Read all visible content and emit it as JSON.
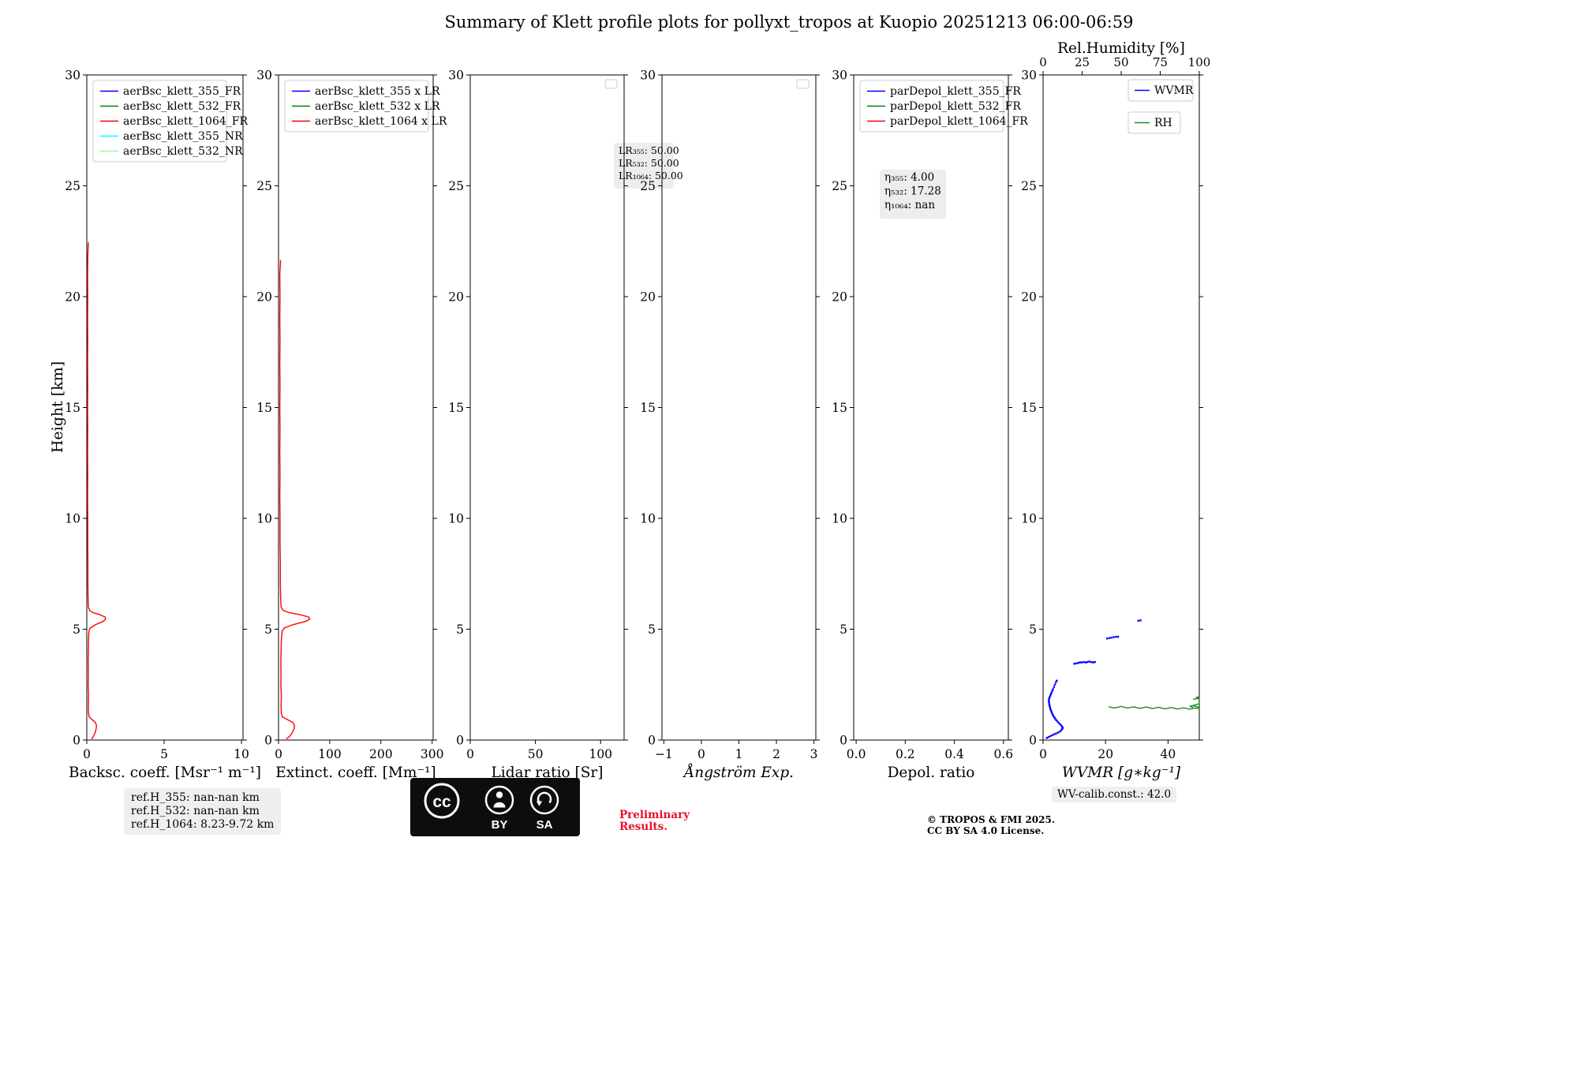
{
  "title": "Summary of Klett profile plots for pollyxt_tropos at Kuopio 20251213 06:00-06:59",
  "ylabel": "Height [km]",
  "footer": {
    "ref_heights": [
      "ref.H_355: nan-nan km",
      "ref.H_532: nan-nan km",
      "ref.H_1064: 8.23-9.72 km"
    ],
    "cc_logo": "cc",
    "cc_by": "BY",
    "cc_sa": "SA",
    "preliminary": [
      "Preliminary",
      "Results."
    ],
    "copyright": [
      "© TROPOS & FMI 2025.",
      "CC BY SA 4.0 License."
    ],
    "wv_calib": "WV-calib.const.: 42.0"
  },
  "chart_data": [
    {
      "id": "backscatter",
      "type": "line",
      "xlabel": "Backsc. coeff. [Msr⁻¹ m⁻¹]",
      "xlabel_italic": false,
      "xlim": [
        0,
        10.1
      ],
      "xticks": [
        0,
        5,
        10
      ],
      "xtick_labels": [
        "0",
        "5",
        "10"
      ],
      "ylim": [
        0,
        30
      ],
      "yticks": [
        0,
        5,
        10,
        15,
        20,
        25,
        30
      ],
      "legend": {
        "position": "top-left",
        "entries": [
          {
            "label": "aerBsc_klett_355_FR",
            "color": "#0000ff"
          },
          {
            "label": "aerBsc_klett_532_FR",
            "color": "#008000"
          },
          {
            "label": "aerBsc_klett_1064_FR",
            "color": "#ff0000"
          },
          {
            "label": "aerBsc_klett_355_NR",
            "color": "#00ffff"
          },
          {
            "label": "aerBsc_klett_532_NR",
            "color": "#98fb98"
          }
        ]
      },
      "series": [
        {
          "name": "aerBsc_klett_1064_FR",
          "color": "#ff0000",
          "mode": "line",
          "axis": "x",
          "points": [
            [
              0.3,
              0.05
            ],
            [
              0.42,
              0.15
            ],
            [
              0.52,
              0.3
            ],
            [
              0.6,
              0.5
            ],
            [
              0.63,
              0.65
            ],
            [
              0.55,
              0.8
            ],
            [
              0.3,
              0.95
            ],
            [
              0.15,
              1.05
            ],
            [
              0.11,
              1.2
            ],
            [
              0.1,
              1.5
            ],
            [
              0.11,
              2.0
            ],
            [
              0.09,
              2.5
            ],
            [
              0.1,
              3.0
            ],
            [
              0.09,
              3.5
            ],
            [
              0.1,
              4.0
            ],
            [
              0.11,
              4.5
            ],
            [
              0.14,
              4.9
            ],
            [
              0.22,
              5.05
            ],
            [
              0.55,
              5.2
            ],
            [
              1.05,
              5.35
            ],
            [
              1.22,
              5.45
            ],
            [
              1.18,
              5.55
            ],
            [
              0.85,
              5.65
            ],
            [
              0.4,
              5.75
            ],
            [
              0.18,
              5.85
            ],
            [
              0.1,
              6.0
            ],
            [
              0.08,
              6.5
            ],
            [
              0.07,
              7.0
            ],
            [
              0.07,
              8.0
            ],
            [
              0.06,
              9.0
            ],
            [
              0.06,
              10.0
            ],
            [
              0.05,
              11.0
            ],
            [
              0.06,
              12.0
            ],
            [
              0.05,
              13.0
            ],
            [
              0.06,
              14.0
            ],
            [
              0.05,
              15.0
            ],
            [
              0.06,
              16.0
            ],
            [
              0.05,
              17.0
            ],
            [
              0.06,
              18.0
            ],
            [
              0.05,
              19.0
            ],
            [
              0.06,
              20.0
            ],
            [
              0.05,
              21.0
            ],
            [
              0.07,
              22.0
            ],
            [
              0.1,
              22.45
            ]
          ]
        }
      ]
    },
    {
      "id": "extinction",
      "type": "line",
      "xlabel": "Extinct. coeff. [Mm⁻¹]",
      "xlabel_italic": false,
      "xlim": [
        0,
        302
      ],
      "xticks": [
        0,
        100,
        200,
        300
      ],
      "xtick_labels": [
        "0",
        "100",
        "200",
        "300"
      ],
      "ylim": [
        0,
        30
      ],
      "yticks": [
        0,
        5,
        10,
        15,
        20,
        25,
        30
      ],
      "legend": {
        "position": "top-left",
        "entries": [
          {
            "label": "aerBsc_klett_355 x LR",
            "color": "#0000ff"
          },
          {
            "label": "aerBsc_klett_532 x LR",
            "color": "#008000"
          },
          {
            "label": "aerBsc_klett_1064 x LR",
            "color": "#ff0000"
          }
        ]
      },
      "annotation": {
        "lines": [
          "LR₃₅₅: 50.00",
          "LR₅₃₂: 50.00",
          "LR₁₀₆₄: 50.00"
        ]
      },
      "series": [
        {
          "name": "aerBsc_klett_1064_xLR",
          "color": "#ff0000",
          "mode": "line",
          "axis": "x",
          "points": [
            [
              15,
              0.05
            ],
            [
              21,
              0.15
            ],
            [
              26,
              0.3
            ],
            [
              30,
              0.5
            ],
            [
              31.5,
              0.65
            ],
            [
              27.5,
              0.8
            ],
            [
              15,
              0.95
            ],
            [
              7.5,
              1.05
            ],
            [
              5.5,
              1.2
            ],
            [
              5,
              1.5
            ],
            [
              5.5,
              2.0
            ],
            [
              4.5,
              2.5
            ],
            [
              5,
              3.0
            ],
            [
              4.5,
              3.5
            ],
            [
              5,
              4.0
            ],
            [
              5.5,
              4.5
            ],
            [
              7,
              4.9
            ],
            [
              11,
              5.05
            ],
            [
              27.5,
              5.2
            ],
            [
              52.5,
              5.35
            ],
            [
              61,
              5.45
            ],
            [
              59,
              5.55
            ],
            [
              42.5,
              5.65
            ],
            [
              20,
              5.75
            ],
            [
              9,
              5.85
            ],
            [
              5,
              6.0
            ],
            [
              4,
              6.5
            ],
            [
              3.5,
              7.0
            ],
            [
              3.5,
              8.0
            ],
            [
              3,
              9.0
            ],
            [
              3,
              10.0
            ],
            [
              2.5,
              11.0
            ],
            [
              3,
              12.0
            ],
            [
              2.5,
              13.0
            ],
            [
              3,
              14.0
            ],
            [
              2.5,
              15.0
            ],
            [
              3,
              16.0
            ],
            [
              2.5,
              17.0
            ],
            [
              3,
              18.0
            ],
            [
              2.5,
              19.0
            ],
            [
              3,
              20.0
            ],
            [
              2.5,
              21.0
            ],
            [
              4,
              21.65
            ]
          ]
        }
      ]
    },
    {
      "id": "lidar-ratio",
      "type": "line",
      "xlabel": "Lidar ratio [Sr]",
      "xlabel_italic": false,
      "xlim": [
        0,
        118
      ],
      "xticks": [
        0,
        50,
        100
      ],
      "xtick_labels": [
        "0",
        "50",
        "100"
      ],
      "ylim": [
        0,
        30
      ],
      "yticks": [
        0,
        5,
        10,
        15,
        20,
        25,
        30
      ],
      "legend": {
        "position": "empty-top-right",
        "entries": []
      },
      "series": []
    },
    {
      "id": "angstrom",
      "type": "line",
      "xlabel": "Ångström Exp.",
      "xlabel_italic": true,
      "xlim": [
        -1.05,
        3.05
      ],
      "xticks": [
        -1,
        0,
        1,
        2,
        3
      ],
      "xtick_labels": [
        "−1",
        "0",
        "1",
        "2",
        "3"
      ],
      "ylim": [
        0,
        30
      ],
      "yticks": [
        0,
        5,
        10,
        15,
        20,
        25,
        30
      ],
      "legend": {
        "position": "empty-top-right",
        "entries": []
      },
      "series": []
    },
    {
      "id": "depol",
      "type": "line",
      "xlabel": "Depol. ratio",
      "xlabel_italic": false,
      "xlim": [
        -0.01,
        0.62
      ],
      "xticks": [
        0,
        0.2,
        0.4,
        0.6
      ],
      "xtick_labels": [
        "0.0",
        "0.2",
        "0.4",
        "0.6"
      ],
      "ylim": [
        0,
        30
      ],
      "yticks": [
        0,
        5,
        10,
        15,
        20,
        25,
        30
      ],
      "legend": {
        "position": "top-left",
        "entries": [
          {
            "label": "parDepol_klett_355_FR",
            "color": "#0000ff"
          },
          {
            "label": "parDepol_klett_532_FR",
            "color": "#008000"
          },
          {
            "label": "parDepol_klett_1064_FR",
            "color": "#ff0000"
          }
        ]
      },
      "annotation": {
        "lines": [
          "η₃₅₅: 4.00",
          "η₅₃₂: 17.28",
          "η₁₀₆₄: nan"
        ]
      },
      "series": []
    },
    {
      "id": "wvmr",
      "type": "scatter",
      "xlabel": "WVMR [g∗kg⁻¹]",
      "xlabel_italic": true,
      "xlim": [
        0,
        50
      ],
      "xticks": [
        0,
        20,
        40
      ],
      "xtick_labels": [
        "0",
        "20",
        "40"
      ],
      "ylim": [
        0,
        30
      ],
      "yticks": [
        0,
        5,
        10,
        15,
        20,
        25,
        30
      ],
      "x2": {
        "label": "Rel.Humidity [%]",
        "xlim": [
          0,
          100
        ],
        "xticks": [
          0,
          25,
          50,
          75,
          100
        ],
        "xtick_labels": [
          "0",
          "25",
          "50",
          "75",
          "100"
        ]
      },
      "legend": {
        "position": "stacked-top-right",
        "entries": [
          {
            "label": "WVMR",
            "color": "#0000ff"
          },
          {
            "label": "RH",
            "color": "#228b22"
          }
        ]
      },
      "series": [
        {
          "name": "WVMR",
          "color": "#0000ff",
          "mode": "scatter",
          "axis": "x",
          "points": [
            [
              1.2,
              0.1
            ],
            [
              1.8,
              0.14
            ],
            [
              2.4,
              0.18
            ],
            [
              3.0,
              0.22
            ],
            [
              3.6,
              0.26
            ],
            [
              4.2,
              0.3
            ],
            [
              4.8,
              0.34
            ],
            [
              5.4,
              0.38
            ],
            [
              5.8,
              0.44
            ],
            [
              6.1,
              0.5
            ],
            [
              6.3,
              0.55
            ],
            [
              6.1,
              0.6
            ],
            [
              5.8,
              0.66
            ],
            [
              5.4,
              0.72
            ],
            [
              5.0,
              0.78
            ],
            [
              4.6,
              0.84
            ],
            [
              4.2,
              0.9
            ],
            [
              3.9,
              0.96
            ],
            [
              3.6,
              1.02
            ],
            [
              3.3,
              1.08
            ],
            [
              3.1,
              1.14
            ],
            [
              2.9,
              1.2
            ],
            [
              2.7,
              1.27
            ],
            [
              2.5,
              1.34
            ],
            [
              2.35,
              1.41
            ],
            [
              2.2,
              1.48
            ],
            [
              2.1,
              1.55
            ],
            [
              2.0,
              1.62
            ],
            [
              1.9,
              1.7
            ],
            [
              1.85,
              1.78
            ],
            [
              1.95,
              1.86
            ],
            [
              2.1,
              1.93
            ],
            [
              2.3,
              2.0
            ],
            [
              2.5,
              2.07
            ],
            [
              2.7,
              2.14
            ],
            [
              2.95,
              2.22
            ],
            [
              3.2,
              2.3
            ],
            [
              3.5,
              2.4
            ],
            [
              3.8,
              2.5
            ],
            [
              4.1,
              2.6
            ],
            [
              4.4,
              2.68
            ],
            [
              10.0,
              3.44
            ],
            [
              10.6,
              3.46
            ],
            [
              11.2,
              3.48
            ],
            [
              11.8,
              3.5
            ],
            [
              12.4,
              3.5
            ],
            [
              13.0,
              3.52
            ],
            [
              13.6,
              3.5
            ],
            [
              14.2,
              3.52
            ],
            [
              14.8,
              3.54
            ],
            [
              15.4,
              3.52
            ],
            [
              16.0,
              3.5
            ],
            [
              16.6,
              3.52
            ],
            [
              20.5,
              4.58
            ],
            [
              21.2,
              4.6
            ],
            [
              21.9,
              4.62
            ],
            [
              22.6,
              4.64
            ],
            [
              23.3,
              4.66
            ],
            [
              24.0,
              4.66
            ],
            [
              30.5,
              5.38
            ],
            [
              31.2,
              5.4
            ]
          ]
        },
        {
          "name": "RH",
          "color": "#228b22",
          "mode": "line",
          "axis": "x2",
          "points": [
            [
              42,
              1.5
            ],
            [
              46,
              1.45
            ],
            [
              50,
              1.52
            ],
            [
              54,
              1.44
            ],
            [
              58,
              1.5
            ],
            [
              62,
              1.43
            ],
            [
              66,
              1.49
            ],
            [
              70,
              1.42
            ],
            [
              74,
              1.48
            ],
            [
              78,
              1.41
            ],
            [
              82,
              1.47
            ],
            [
              86,
              1.4
            ],
            [
              90,
              1.46
            ],
            [
              94,
              1.39
            ],
            [
              97,
              1.45
            ],
            [
              100,
              1.42
            ],
            [
              99,
              1.5
            ],
            [
              96,
              1.55
            ],
            [
              98,
              1.6
            ],
            [
              100,
              1.64
            ],
            [
              97,
              1.58
            ],
            [
              94,
              1.52
            ],
            [
              96,
              1.47
            ]
          ]
        },
        {
          "name": "RH-upper",
          "color": "#228b22",
          "mode": "line",
          "axis": "x2",
          "points": [
            [
              96,
              1.84
            ],
            [
              100,
              1.88
            ],
            [
              98,
              1.92
            ],
            [
              100,
              1.96
            ]
          ]
        }
      ]
    }
  ]
}
